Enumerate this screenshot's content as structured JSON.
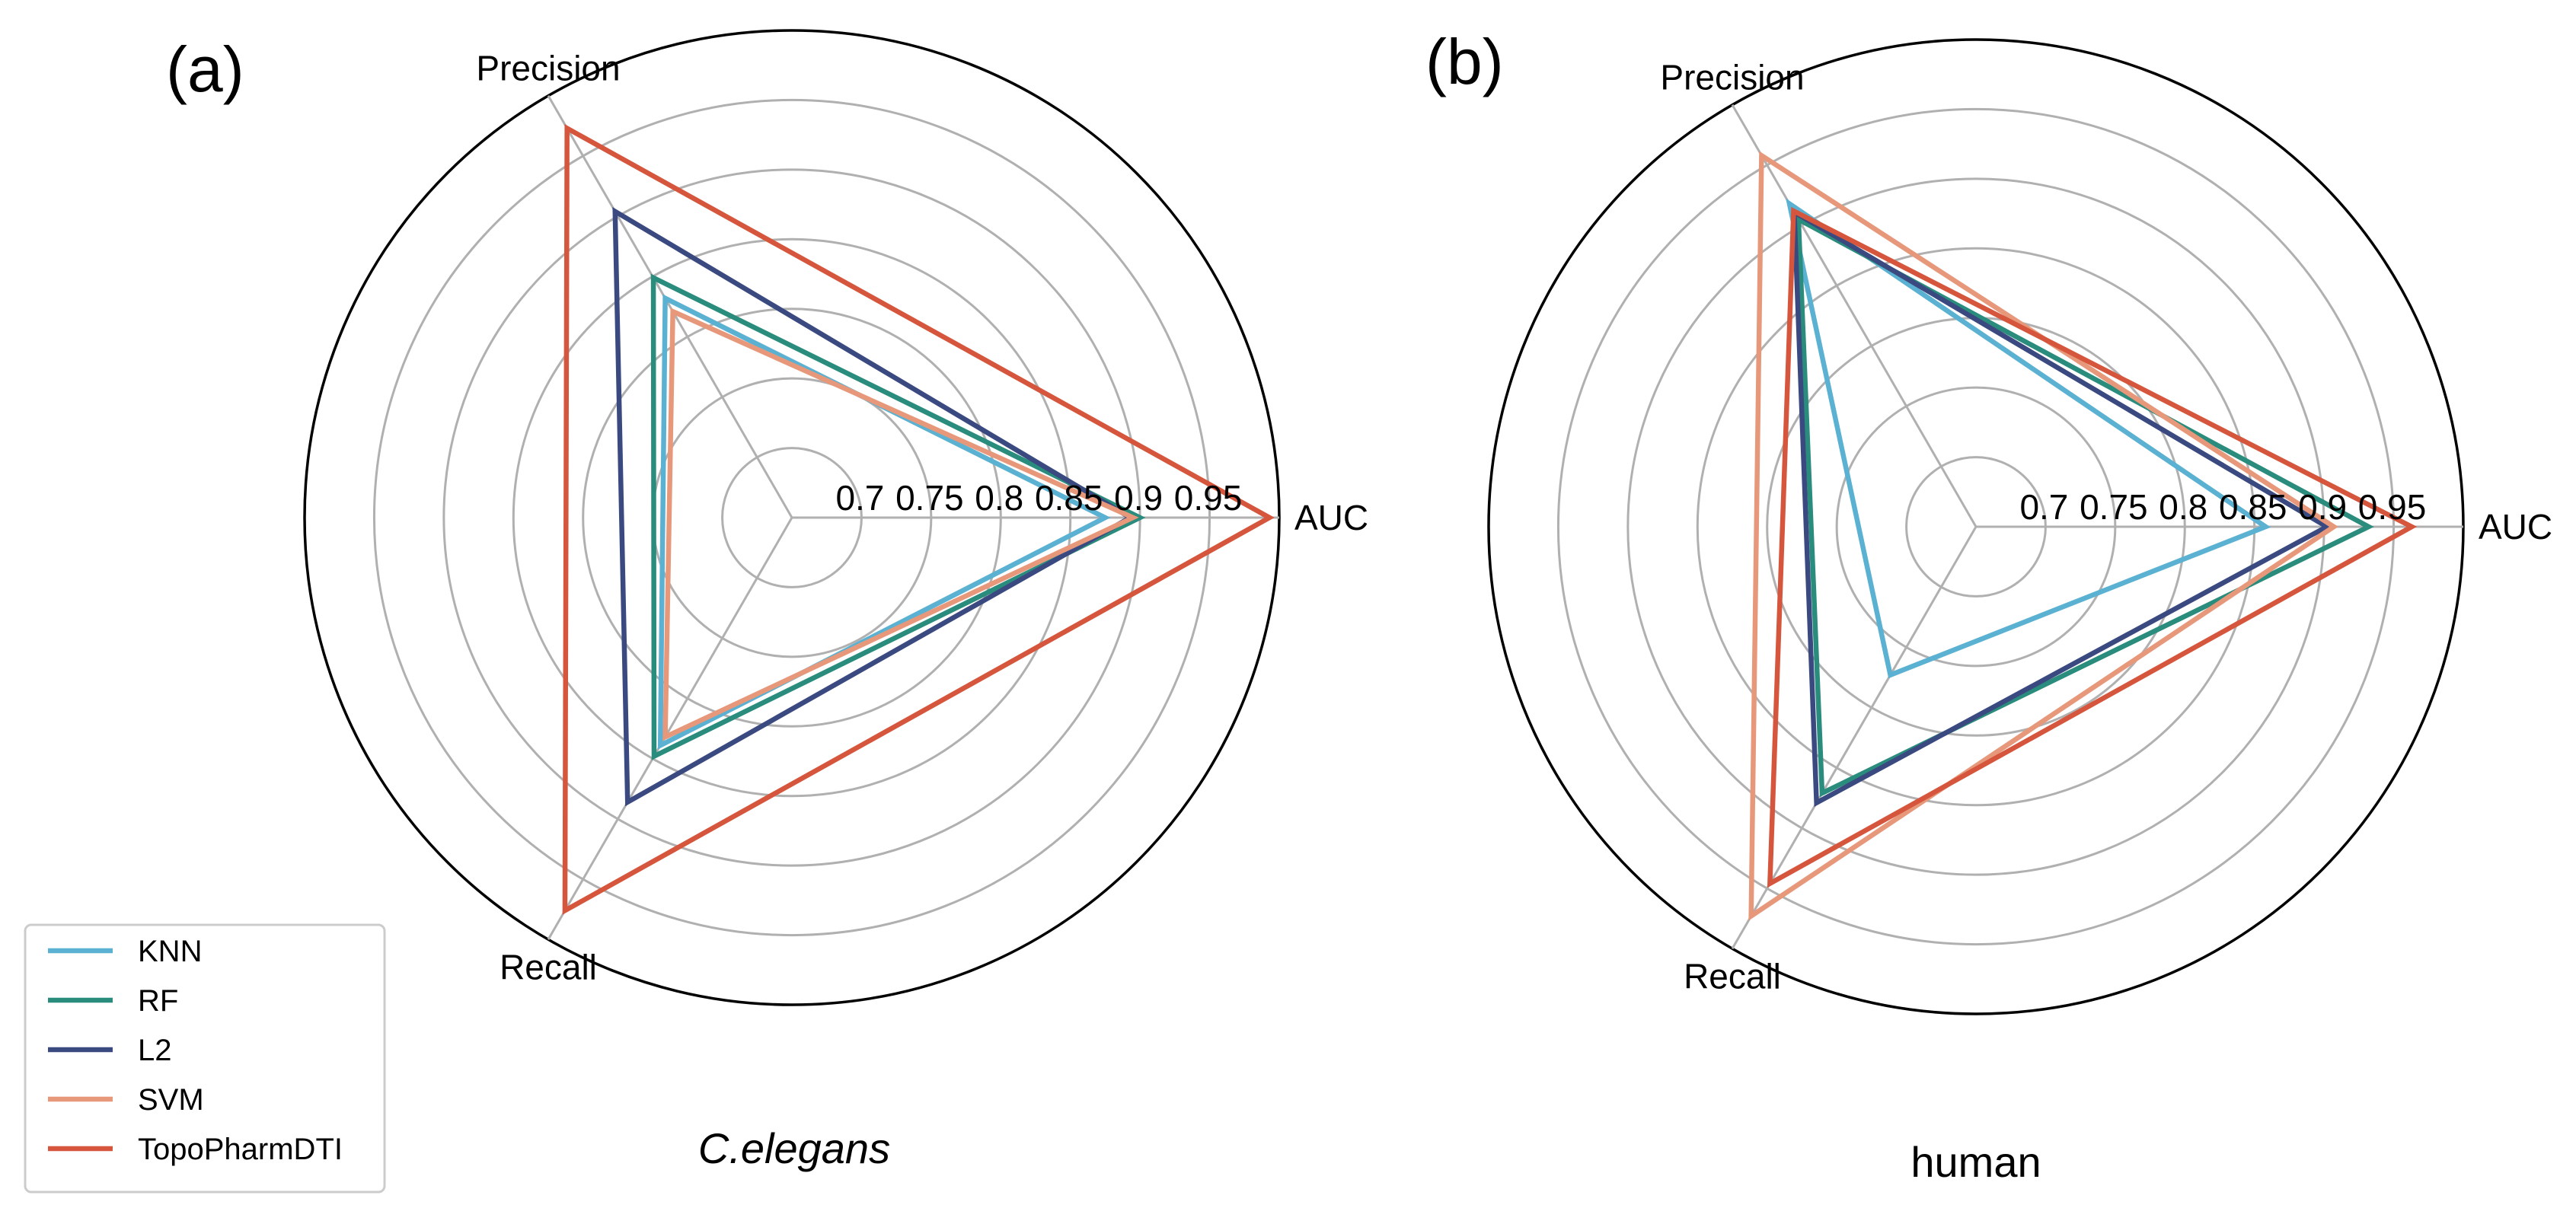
{
  "chart_data": [
    {
      "type": "radar",
      "panel_label": "(a)",
      "caption": "C.elegans",
      "caption_italic": true,
      "axes": [
        "AUC",
        "Precision",
        "Recall"
      ],
      "radial_ticks": [
        "0.7",
        "0.75",
        "0.8",
        "0.85",
        "0.9",
        "0.95"
      ],
      "radial_tick_values": [
        0.7,
        0.75,
        0.8,
        0.85,
        0.9,
        0.95
      ],
      "rlim": [
        0.65,
        1.0
      ],
      "series": [
        {
          "name": "KNN",
          "color": "#5bb1d1",
          "values": [
            0.875,
            0.832,
            0.839
          ]
        },
        {
          "name": "RF",
          "color": "#2a8c7c",
          "values": [
            0.9,
            0.849,
            0.848
          ]
        },
        {
          "name": "L2",
          "color": "#3a4a80",
          "values": [
            0.893,
            0.904,
            0.886
          ]
        },
        {
          "name": "SVM",
          "color": "#e8987a",
          "values": [
            0.895,
            0.821,
            0.832
          ]
        },
        {
          "name": "TopoPharmDTI",
          "color": "#d5563c",
          "values": [
            0.993,
            0.973,
            0.976
          ]
        }
      ]
    },
    {
      "type": "radar",
      "panel_label": "(b)",
      "caption": "human",
      "caption_italic": false,
      "axes": [
        "AUC",
        "Precision",
        "Recall"
      ],
      "radial_ticks": [
        "0.7",
        "0.75",
        "0.8",
        "0.85",
        "0.9",
        "0.95"
      ],
      "radial_tick_values": [
        0.7,
        0.75,
        0.8,
        0.85,
        0.9,
        0.95
      ],
      "rlim": [
        0.65,
        1.0
      ],
      "series": [
        {
          "name": "KNN",
          "color": "#5bb1d1",
          "values": [
            0.858,
            0.918,
            0.773
          ]
        },
        {
          "name": "RF",
          "color": "#2a8c7c",
          "values": [
            0.932,
            0.905,
            0.871
          ]
        },
        {
          "name": "L2",
          "color": "#3a4a80",
          "values": [
            0.902,
            0.911,
            0.879
          ]
        },
        {
          "name": "SVM",
          "color": "#e8987a",
          "values": [
            0.907,
            0.958,
            0.973
          ]
        },
        {
          "name": "TopoPharmDTI",
          "color": "#d5563c",
          "values": [
            0.963,
            0.912,
            0.946
          ]
        }
      ]
    }
  ],
  "legend": {
    "placement": "bottom-left",
    "entries": [
      {
        "name": "KNN",
        "color": "#5bb1d1"
      },
      {
        "name": "RF",
        "color": "#2a8c7c"
      },
      {
        "name": "L2",
        "color": "#3a4a80"
      },
      {
        "name": "SVM",
        "color": "#e8987a"
      },
      {
        "name": "TopoPharmDTI",
        "color": "#d5563c"
      }
    ]
  }
}
